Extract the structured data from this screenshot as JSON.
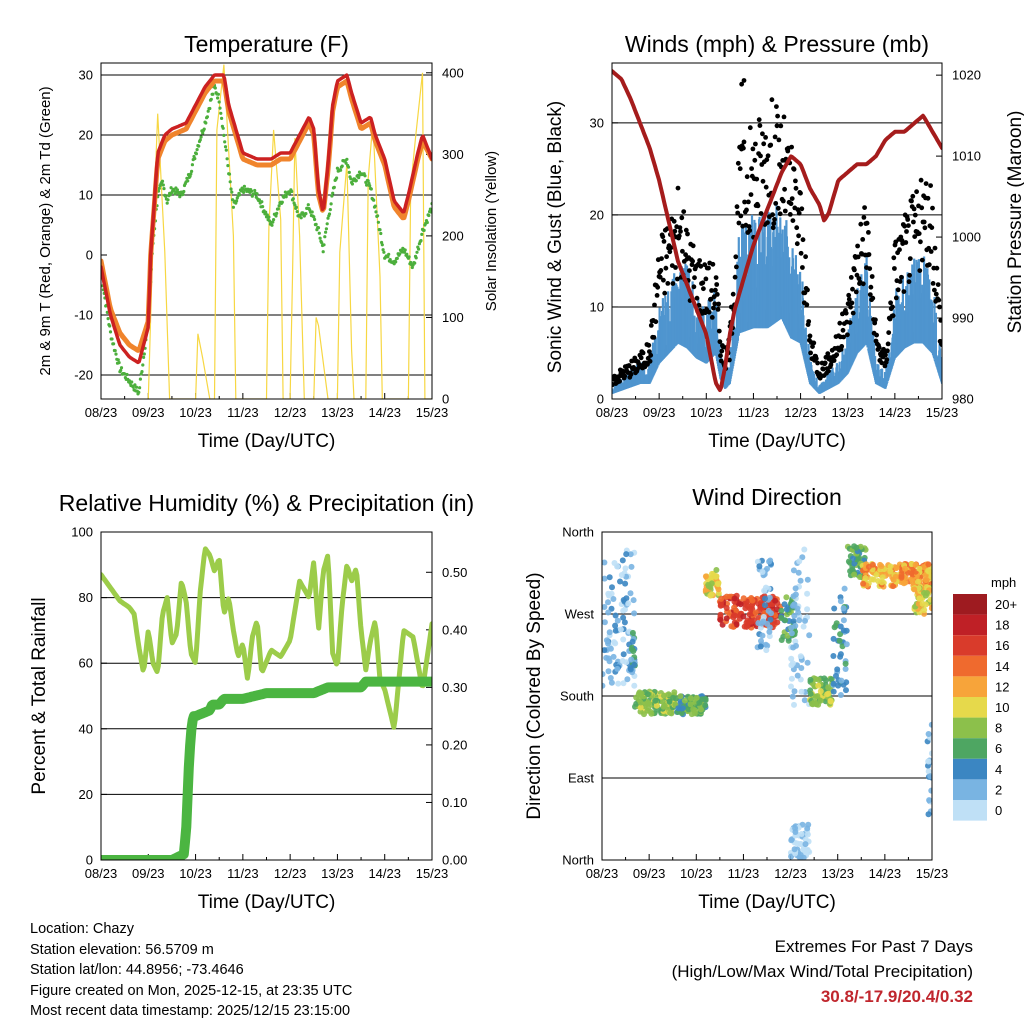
{
  "colors": {
    "temp2m": "#cc2121",
    "temp9m": "#f0842c",
    "dewpoint": "#4caf3c",
    "solar": "#f7d743",
    "wind": "#4f95cf",
    "gust": "#000000",
    "pressure": "#a51c1c",
    "rh": "#9ccc4a",
    "precip": "#4bb541",
    "grid": "#000000"
  },
  "xticks": [
    "08/23",
    "09/23",
    "10/23",
    "11/23",
    "12/23",
    "13/23",
    "14/23",
    "15/23"
  ],
  "xlabel": "Time (Day/UTC)",
  "chart_data": [
    {
      "type": "line",
      "title": "Temperature (F)",
      "xlabel": "Time (Day/UTC)",
      "ylabel": "2m & 9m T (Red, Orange) & 2m Td (Green)",
      "y2label": "Solar Insolation (Yellow)",
      "ylim": [
        -24,
        32
      ],
      "y2lim": [
        0,
        412
      ],
      "yticks": [
        -20,
        -10,
        0,
        10,
        20,
        30
      ],
      "y2ticks": [
        0,
        100,
        200,
        300,
        400
      ],
      "ygrid": [
        -20,
        -10,
        10,
        20,
        30
      ],
      "series": [
        {
          "name": "2m T",
          "axis": "left",
          "style": "line",
          "color": "temp2m",
          "x": [
            0,
            0.2,
            0.4,
            0.6,
            0.8,
            1.0,
            1.05,
            1.2,
            1.35,
            1.5,
            1.8,
            2.0,
            2.2,
            2.3,
            2.4,
            2.6,
            2.7,
            3.0,
            3.3,
            3.6,
            3.8,
            4.0,
            4.2,
            4.4,
            4.5,
            4.6,
            4.7,
            4.8,
            4.9,
            5.0,
            5.2,
            5.3,
            5.5,
            5.7,
            5.8,
            6.0,
            6.2,
            6.4,
            6.5,
            6.7,
            6.8,
            7.0
          ],
          "y": [
            -2,
            -10,
            -15,
            -17,
            -18,
            -12,
            0,
            17,
            20,
            21,
            22,
            25,
            28,
            29,
            30,
            30,
            25,
            17,
            16,
            16,
            17,
            17,
            20,
            23,
            21,
            11,
            7,
            15,
            25,
            29,
            30,
            27,
            22,
            23,
            20,
            16,
            9,
            7,
            10,
            17,
            20,
            16
          ]
        },
        {
          "name": "9m T",
          "axis": "left",
          "style": "line",
          "color": "temp9m",
          "x": [
            0,
            0.2,
            0.4,
            0.6,
            0.8,
            1.0,
            1.05,
            1.2,
            1.35,
            1.5,
            1.8,
            2.0,
            2.2,
            2.3,
            2.4,
            2.6,
            2.7,
            3.0,
            3.3,
            3.6,
            3.8,
            4.0,
            4.2,
            4.4,
            4.5,
            4.6,
            4.7,
            4.8,
            4.9,
            5.0,
            5.2,
            5.3,
            5.5,
            5.7,
            5.8,
            6.0,
            6.2,
            6.4,
            6.5,
            6.7,
            6.8,
            7.0
          ],
          "y": [
            -1,
            -9,
            -13,
            -15,
            -16,
            -11,
            0,
            16,
            19,
            20,
            21,
            24,
            27,
            28,
            29,
            29,
            24,
            16,
            15,
            15,
            16,
            16,
            19,
            22,
            20,
            10,
            7,
            14,
            24,
            28,
            29,
            26,
            21,
            22,
            19,
            15,
            8,
            6,
            9,
            16,
            19,
            16
          ]
        },
        {
          "name": "2m Td",
          "axis": "left",
          "style": "dots",
          "color": "dewpoint",
          "x": [
            0,
            0.2,
            0.4,
            0.6,
            0.8,
            1.0,
            1.1,
            1.2,
            1.3,
            1.4,
            1.5,
            1.7,
            1.9,
            2.0,
            2.2,
            2.4,
            2.5,
            2.6,
            2.7,
            2.8,
            3.0,
            3.3,
            3.6,
            3.8,
            4.0,
            4.2,
            4.4,
            4.6,
            4.7,
            4.8,
            5.0,
            5.2,
            5.3,
            5.5,
            5.7,
            5.8,
            6.0,
            6.2,
            6.4,
            6.6,
            6.8,
            7.0
          ],
          "y": [
            -3,
            -13,
            -19,
            -21,
            -23,
            -11,
            2,
            10,
            12,
            9,
            11,
            10,
            14,
            17,
            22,
            28,
            26,
            20,
            14,
            8,
            11,
            10,
            5,
            9,
            11,
            6,
            8,
            4,
            1,
            6,
            14,
            16,
            12,
            14,
            11,
            8,
            0,
            -1,
            1,
            -2,
            4,
            8
          ]
        },
        {
          "name": "Solar Insolation",
          "axis": "right",
          "style": "line",
          "color": "solar",
          "x": [
            1.0,
            1.1,
            1.2,
            1.35,
            1.45,
            2.0,
            2.05,
            2.15,
            2.3,
            2.4,
            2.45,
            2.6,
            2.8,
            2.85,
            2.9,
            3.0,
            3.05,
            3.5,
            3.55,
            3.65,
            3.8,
            3.85,
            4.0,
            4.05,
            4.1,
            4.2,
            4.3,
            4.35,
            4.5,
            4.55,
            4.6,
            4.8,
            4.85,
            5.0,
            5.05,
            5.2,
            5.3,
            5.35,
            5.6,
            5.65,
            5.75,
            5.9,
            5.95,
            6.5,
            6.55,
            6.65,
            6.8,
            6.85,
            7.0
          ],
          "y": [
            0,
            200,
            350,
            180,
            0,
            0,
            80,
            50,
            0,
            0,
            330,
            410,
            200,
            0,
            0,
            0,
            0,
            0,
            210,
            330,
            220,
            0,
            0,
            150,
            320,
            200,
            0,
            0,
            0,
            100,
            90,
            0,
            0,
            0,
            180,
            290,
            60,
            0,
            0,
            270,
            340,
            150,
            0,
            0,
            260,
            320,
            400,
            0,
            0
          ]
        }
      ]
    },
    {
      "type": "scatter",
      "title": "Winds (mph) & Pressure (mb)",
      "xlabel": "Time (Day/UTC)",
      "ylabel": "Sonic Wind & Gust (Blue, Black)",
      "y2label": "Station Pressure (Maroon)",
      "ylim": [
        0,
        36.5
      ],
      "y2lim": [
        980,
        1021.5
      ],
      "yticks": [
        0,
        10,
        20,
        30
      ],
      "y2ticks": [
        980,
        990,
        1000,
        1010,
        1020
      ],
      "ygrid": [
        10,
        20,
        30
      ],
      "series": [
        {
          "name": "Station Pressure",
          "axis": "right",
          "style": "line",
          "color": "pressure",
          "x": [
            0,
            0.2,
            0.4,
            0.6,
            0.8,
            1.0,
            1.2,
            1.4,
            1.6,
            1.8,
            2.0,
            2.1,
            2.2,
            2.3,
            2.4,
            2.5,
            2.6,
            2.8,
            3.0,
            3.2,
            3.4,
            3.6,
            3.8,
            4.0,
            4.2,
            4.4,
            4.5,
            4.6,
            4.7,
            4.8,
            5.0,
            5.2,
            5.4,
            5.6,
            5.8,
            6.0,
            6.2,
            6.4,
            6.6,
            6.8,
            7.0
          ],
          "y": [
            1020.5,
            1019.5,
            1017,
            1014,
            1011,
            1007,
            1002,
            997,
            994,
            991,
            988,
            985,
            982,
            981,
            984,
            988,
            991,
            995,
            999,
            1002,
            1005,
            1008,
            1010,
            1009,
            1006,
            1004,
            1002,
            1003,
            1005,
            1007,
            1008,
            1009,
            1009,
            1010,
            1012,
            1013,
            1013,
            1014,
            1015,
            1013,
            1011
          ]
        },
        {
          "name": "Sonic Wind",
          "axis": "left",
          "style": "dots",
          "color": "wind",
          "x": [
            0,
            0.3,
            0.6,
            0.8,
            1.0,
            1.2,
            1.4,
            1.6,
            1.8,
            2.0,
            2.2,
            2.3,
            2.4,
            2.5,
            2.7,
            3.0,
            3.3,
            3.6,
            3.8,
            4.0,
            4.2,
            4.4,
            4.6,
            4.8,
            5.0,
            5.2,
            5.4,
            5.6,
            5.8,
            6.0,
            6.2,
            6.4,
            6.6,
            6.8,
            7.0
          ],
          "y": [
            1,
            2,
            3,
            3,
            7,
            9,
            11,
            10,
            8,
            7,
            9,
            4,
            2,
            3,
            13,
            14,
            14,
            16,
            12,
            11,
            3,
            1,
            2,
            3,
            5,
            9,
            11,
            3,
            2,
            8,
            10,
            11,
            11,
            9,
            3
          ]
        },
        {
          "name": "Gust",
          "axis": "left",
          "style": "dots",
          "color": "gust",
          "x": [
            0,
            0.3,
            0.6,
            0.8,
            1.0,
            1.2,
            1.4,
            1.6,
            1.8,
            2.0,
            2.2,
            2.3,
            2.4,
            2.5,
            2.7,
            3.0,
            3.3,
            3.6,
            3.8,
            4.0,
            4.2,
            4.4,
            4.6,
            4.8,
            5.0,
            5.2,
            5.4,
            5.6,
            5.8,
            6.0,
            6.2,
            6.4,
            6.6,
            6.8,
            7.0
          ],
          "y": [
            2,
            3,
            4,
            5,
            14,
            16,
            18,
            15,
            13,
            12,
            12,
            6,
            4,
            6,
            22,
            24,
            26,
            25,
            22,
            19,
            6,
            3,
            4,
            6,
            9,
            15,
            18,
            6,
            4,
            14,
            16,
            18,
            19,
            18,
            6
          ]
        }
      ]
    },
    {
      "type": "line",
      "title": "Relative Humidity (%) & Precipitation (in)",
      "xlabel": "Time (Day/UTC)",
      "ylabel": "Percent & Total Rainfall",
      "ylim": [
        0,
        100
      ],
      "y2lim": [
        0,
        0.57
      ],
      "yticks": [
        0,
        20,
        40,
        60,
        80,
        100
      ],
      "y2ticks": [
        0.0,
        0.1,
        0.2,
        0.3,
        0.4,
        0.5
      ],
      "y2ticklabels": [
        "0.00",
        "0.10",
        "0.20",
        "0.30",
        "0.40",
        "0.50"
      ],
      "ygrid": [
        20,
        40,
        60,
        80
      ],
      "series": [
        {
          "name": "Relative Humidity",
          "axis": "left",
          "style": "line",
          "color": "rh",
          "x": [
            0,
            0.2,
            0.4,
            0.6,
            0.7,
            0.8,
            0.9,
            1.0,
            1.1,
            1.2,
            1.3,
            1.4,
            1.5,
            1.6,
            1.7,
            1.8,
            1.9,
            2.0,
            2.1,
            2.2,
            2.3,
            2.4,
            2.5,
            2.6,
            2.7,
            2.8,
            2.9,
            3.0,
            3.1,
            3.2,
            3.3,
            3.4,
            3.6,
            3.8,
            4.0,
            4.2,
            4.4,
            4.5,
            4.6,
            4.7,
            4.8,
            4.9,
            5.0,
            5.1,
            5.2,
            5.3,
            5.4,
            5.5,
            5.6,
            5.7,
            5.8,
            5.9,
            6.0,
            6.2,
            6.4,
            6.6,
            6.8,
            7.0
          ],
          "y": [
            87,
            83,
            79,
            77,
            75,
            65,
            57,
            70,
            60,
            57,
            75,
            80,
            66,
            69,
            85,
            79,
            63,
            60,
            82,
            95,
            93,
            88,
            92,
            75,
            80,
            70,
            62,
            66,
            55,
            68,
            73,
            57,
            64,
            62,
            67,
            85,
            80,
            91,
            70,
            88,
            93,
            63,
            59,
            78,
            90,
            85,
            89,
            70,
            58,
            67,
            73,
            55,
            52,
            40,
            70,
            68,
            52,
            72
          ]
        },
        {
          "name": "Total Precipitation",
          "axis": "right",
          "style": "line",
          "color": "precip",
          "x": [
            0,
            1.0,
            1.5,
            1.75,
            1.8,
            1.85,
            1.9,
            1.95,
            2.0,
            2.3,
            2.35,
            2.5,
            2.6,
            3.0,
            3.5,
            4.0,
            4.5,
            4.8,
            5.0,
            5.5,
            5.6,
            6.0,
            6.5,
            7.0
          ],
          "y": [
            0,
            0,
            0,
            0.01,
            0.05,
            0.15,
            0.22,
            0.25,
            0.25,
            0.26,
            0.27,
            0.27,
            0.28,
            0.28,
            0.29,
            0.29,
            0.29,
            0.3,
            0.3,
            0.3,
            0.31,
            0.31,
            0.31,
            0.31
          ]
        }
      ]
    },
    {
      "type": "scatter",
      "title": "Wind Direction",
      "xlabel": "Time (Day/UTC)",
      "ylabel": "Direction (Colored By Speed)",
      "ylim": [
        0,
        360
      ],
      "yticks": [
        0,
        90,
        180,
        270,
        360
      ],
      "yticklabels": [
        "North",
        "East",
        "South",
        "West",
        "North"
      ],
      "ygrid": [
        90,
        180,
        270
      ],
      "colorbar": {
        "unit": "mph",
        "levels": [
          "20+",
          "18",
          "16",
          "14",
          "12",
          "10",
          "8",
          "6",
          "4",
          "2",
          "0"
        ],
        "colors": [
          "#9e1b20",
          "#bf2026",
          "#d93b2b",
          "#ef6a2e",
          "#f7a43a",
          "#e6d94b",
          "#8cc04b",
          "#4ea662",
          "#3b86c2",
          "#79b4e2",
          "#bfe0f6"
        ]
      },
      "segments": [
        {
          "x0": 0.0,
          "x1": 0.7,
          "dir_lo": 190,
          "dir_hi": 340,
          "speed": 2
        },
        {
          "x0": 0.6,
          "x1": 0.7,
          "dir_lo": 200,
          "dir_hi": 250,
          "speed": 4
        },
        {
          "x0": 0.7,
          "x1": 1.55,
          "dir_lo": 160,
          "dir_hi": 185,
          "speed": 8
        },
        {
          "x0": 1.55,
          "x1": 2.2,
          "dir_lo": 160,
          "dir_hi": 180,
          "speed": 6
        },
        {
          "x0": 2.2,
          "x1": 2.5,
          "dir_lo": 290,
          "dir_hi": 320,
          "speed": 10
        },
        {
          "x0": 2.5,
          "x1": 3.8,
          "dir_lo": 255,
          "dir_hi": 290,
          "speed": 16
        },
        {
          "x0": 3.3,
          "x1": 3.6,
          "dir_lo": 230,
          "dir_hi": 330,
          "speed": 2
        },
        {
          "x0": 3.8,
          "x1": 4.1,
          "dir_lo": 240,
          "dir_hi": 290,
          "speed": 6
        },
        {
          "x0": 4.0,
          "x1": 4.4,
          "dir_lo": 170,
          "dir_hi": 350,
          "speed": 1
        },
        {
          "x0": 4.0,
          "x1": 4.4,
          "dir_lo": 0,
          "dir_hi": 40,
          "speed": 1
        },
        {
          "x0": 4.4,
          "x1": 4.9,
          "dir_lo": 170,
          "dir_hi": 200,
          "speed": 8
        },
        {
          "x0": 4.9,
          "x1": 5.2,
          "dir_lo": 180,
          "dir_hi": 300,
          "speed": 4
        },
        {
          "x0": 5.2,
          "x1": 5.6,
          "dir_lo": 310,
          "dir_hi": 345,
          "speed": 6
        },
        {
          "x0": 5.5,
          "x1": 7.0,
          "dir_lo": 300,
          "dir_hi": 325,
          "speed": 12
        },
        {
          "x0": 6.6,
          "x1": 7.0,
          "dir_lo": 270,
          "dir_hi": 300,
          "speed": 10
        },
        {
          "x0": 6.9,
          "x1": 7.0,
          "dir_lo": 50,
          "dir_hi": 150,
          "speed": 2
        }
      ]
    }
  ],
  "info": {
    "location": "Location: Chazy",
    "elevation": "Station elevation: 56.5709 m",
    "latlon": "Station lat/lon: 44.8956; -73.4646",
    "created": "Figure created on Mon, 2025-12-15, at 23:35 UTC",
    "timestamp": "Most recent data timestamp: 2025/12/15 23:15:00"
  },
  "extremes": {
    "heading": "Extremes For Past 7 Days",
    "legend": "(High/Low/Max Wind/Total Precipitation)",
    "values": "30.8/-17.9/20.4/0.32"
  }
}
